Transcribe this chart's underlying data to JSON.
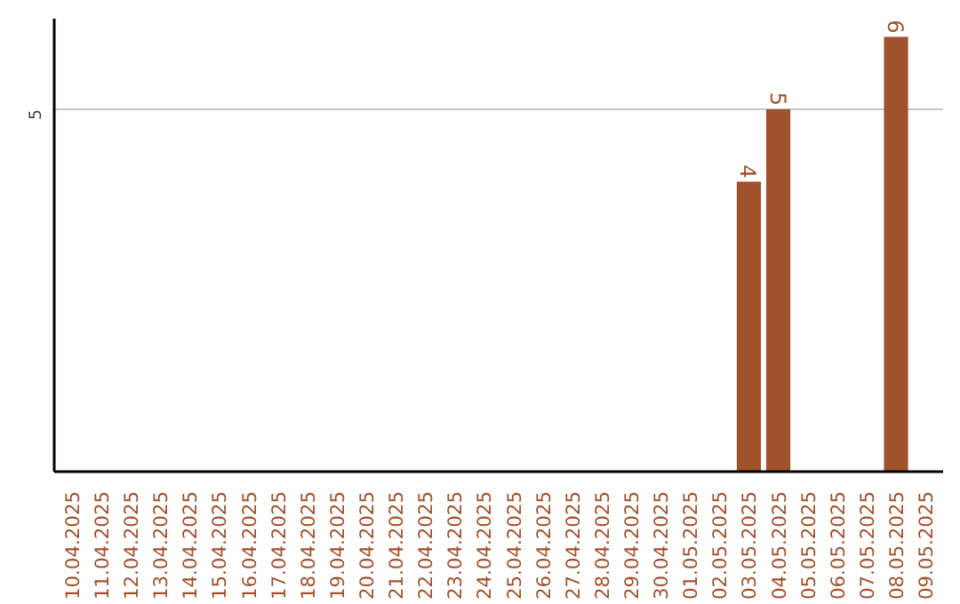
{
  "chart_data": {
    "type": "bar",
    "categories": [
      "10.04.2025",
      "11.04.2025",
      "12.04.2025",
      "13.04.2025",
      "14.04.2025",
      "15.04.2025",
      "16.04.2025",
      "17.04.2025",
      "18.04.2025",
      "19.04.2025",
      "20.04.2025",
      "21.04.2025",
      "22.04.2025",
      "23.04.2025",
      "24.04.2025",
      "25.04.2025",
      "26.04.2025",
      "27.04.2025",
      "28.04.2025",
      "29.04.2025",
      "30.04.2025",
      "01.05.2025",
      "02.05.2025",
      "03.05.2025",
      "04.05.2025",
      "05.05.2025",
      "06.05.2025",
      "07.05.2025",
      "08.05.2025",
      "09.05.2025"
    ],
    "values": [
      null,
      null,
      null,
      null,
      null,
      null,
      null,
      null,
      null,
      null,
      null,
      null,
      null,
      null,
      null,
      null,
      null,
      null,
      null,
      null,
      null,
      null,
      null,
      4,
      5,
      null,
      null,
      null,
      6,
      null
    ],
    "data_labels": true,
    "color": "#a0522d",
    "ylim": [
      0,
      6.25
    ],
    "yticks": [
      5
    ],
    "grid": "y"
  }
}
